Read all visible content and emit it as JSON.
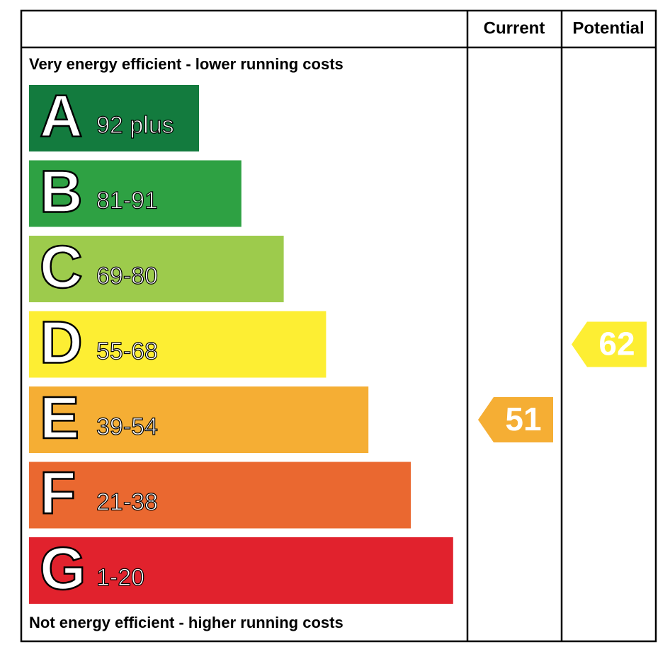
{
  "header": {
    "current": "Current",
    "potential": "Potential"
  },
  "top_note": "Very energy efficient - lower running costs",
  "bottom_note": "Not energy efficient - higher running costs",
  "bands": [
    {
      "letter": "A",
      "range": "92 plus",
      "color": "#137b3e"
    },
    {
      "letter": "B",
      "range": "81-91",
      "color": "#2ea143"
    },
    {
      "letter": "C",
      "range": "69-80",
      "color": "#9dcb4c"
    },
    {
      "letter": "D",
      "range": "55-68",
      "color": "#fdee33"
    },
    {
      "letter": "E",
      "range": "39-54",
      "color": "#f5ae34"
    },
    {
      "letter": "F",
      "range": "21-38",
      "color": "#ea6830"
    },
    {
      "letter": "G",
      "range": "1-20",
      "color": "#e1222d"
    }
  ],
  "current": 51,
  "potential": 62
}
